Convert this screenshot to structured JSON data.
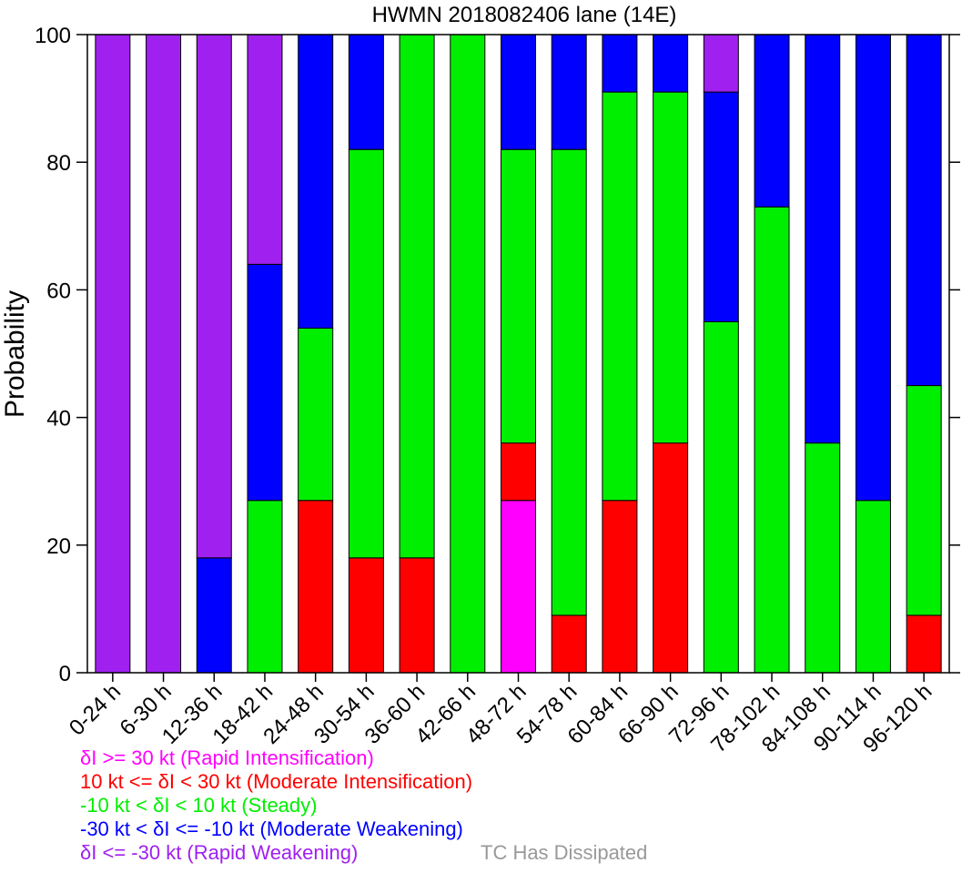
{
  "chart_data": {
    "type": "bar",
    "stacked": true,
    "title": "HWMN 2018082406 lane (14E)",
    "ylabel": "Probability",
    "xlabel": "",
    "ylim": [
      0,
      100
    ],
    "yticks": [
      0,
      20,
      40,
      60,
      80,
      100
    ],
    "categories": [
      "0-24 h",
      "6-30 h",
      "12-36 h",
      "18-42 h",
      "24-48 h",
      "30-54 h",
      "36-60 h",
      "42-66 h",
      "48-72 h",
      "54-78 h",
      "60-84 h",
      "66-90 h",
      "72-96 h",
      "78-102 h",
      "84-108 h",
      "90-114 h",
      "96-120 h"
    ],
    "series": [
      {
        "name": "δI >= 30 kt (Rapid Intensification)",
        "color": "#ff00ff",
        "values": [
          0,
          0,
          0,
          0,
          0,
          0,
          0,
          0,
          27,
          0,
          0,
          0,
          0,
          0,
          0,
          0,
          0
        ]
      },
      {
        "name": "10 kt <= δI < 30 kt (Moderate Intensification)",
        "color": "#ff0000",
        "values": [
          0,
          0,
          0,
          0,
          27,
          18,
          18,
          0,
          9,
          9,
          27,
          36,
          0,
          0,
          0,
          0,
          9
        ]
      },
      {
        "name": "-10 kt < δI < 10 kt (Steady)",
        "color": "#00ee00",
        "values": [
          0,
          0,
          0,
          27,
          27,
          64,
          82,
          100,
          46,
          73,
          64,
          55,
          55,
          73,
          36,
          27,
          36
        ]
      },
      {
        "name": "-30 kt < δI <= -10 kt (Moderate Weakening)",
        "color": "#0000ff",
        "values": [
          0,
          0,
          18,
          37,
          46,
          18,
          0,
          0,
          18,
          18,
          9,
          9,
          36,
          27,
          64,
          73,
          55
        ]
      },
      {
        "name": "δI <= -30 kt (Rapid Weakening)",
        "color": "#a020f0",
        "values": [
          100,
          100,
          82,
          36,
          0,
          0,
          0,
          0,
          0,
          0,
          0,
          0,
          9,
          0,
          0,
          0,
          0
        ]
      }
    ],
    "dissipated_label": "TC Has Dissipated",
    "dissipated_color": "#999999",
    "grid": false,
    "legend_placement": "bottom-left"
  }
}
